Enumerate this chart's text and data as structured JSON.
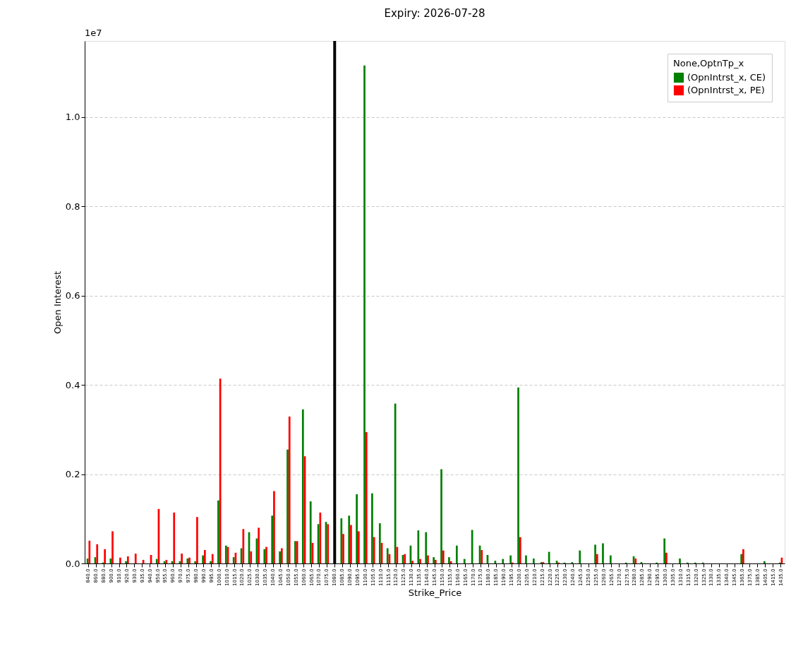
{
  "chart_data": {
    "type": "bar",
    "title": "Expiry: 2026-07-28",
    "xlabel": "Strike_Price",
    "ylabel": "Open Interest",
    "legend_title": "None,OptnTp_x",
    "categories": [
      "840.0",
      "860.0",
      "880.0",
      "900.0",
      "910.0",
      "920.0",
      "930.0",
      "935.0",
      "940.0",
      "950.0",
      "955.0",
      "960.0",
      "970.0",
      "975.0",
      "980.0",
      "990.0",
      "995.0",
      "1000.0",
      "1010.0",
      "1015.0",
      "1020.0",
      "1025.0",
      "1030.0",
      "1035.0",
      "1040.0",
      "1045.0",
      "1050.0",
      "1055.0",
      "1060.0",
      "1065.0",
      "1070.0",
      "1075.0",
      "1080.0",
      "1085.0",
      "1090.0",
      "1095.0",
      "1100.0",
      "1105.0",
      "1110.0",
      "1115.0",
      "1120.0",
      "1125.0",
      "1130.0",
      "1135.0",
      "1140.0",
      "1145.0",
      "1150.0",
      "1155.0",
      "1160.0",
      "1165.0",
      "1170.0",
      "1175.0",
      "1180.0",
      "1185.0",
      "1190.0",
      "1195.0",
      "1200.0",
      "1205.0",
      "1210.0",
      "1215.0",
      "1220.0",
      "1225.0",
      "1230.0",
      "1240.0",
      "1245.0",
      "1250.0",
      "1255.0",
      "1260.0",
      "1265.0",
      "1270.0",
      "1275.0",
      "1280.0",
      "1285.0",
      "1290.0",
      "1295.0",
      "1300.0",
      "1305.0",
      "1310.0",
      "1315.0",
      "1320.0",
      "1325.0",
      "1330.0",
      "1335.0",
      "1340.0",
      "1345.0",
      "1365.0",
      "1375.0",
      "1385.0",
      "1405.0",
      "1415.0",
      "1435.0"
    ],
    "series": [
      {
        "name": "(OpnIntrst_x, CE)",
        "color": "#008000",
        "values": [
          0.011,
          0.014,
          0.002,
          0.011,
          null,
          0.005,
          null,
          null,
          null,
          0.01,
          0.005,
          0.005,
          0.005,
          0.011,
          0.005,
          0.018,
          0.005,
          0.141,
          0.04,
          0.014,
          0.034,
          0.07,
          0.056,
          0.032,
          0.107,
          0.027,
          0.255,
          0.05,
          0.345,
          0.139,
          0.088,
          0.093,
          null,
          0.101,
          0.107,
          0.155,
          1.115,
          0.157,
          0.09,
          0.034,
          0.358,
          0.019,
          0.04,
          0.074,
          0.07,
          0.014,
          0.211,
          0.014,
          0.04,
          0.01,
          0.075,
          0.04,
          0.019,
          0.006,
          0.01,
          0.018,
          0.394,
          0.018,
          0.011,
          0.003,
          0.026,
          0.006,
          0.002,
          0.003,
          0.029,
          null,
          0.042,
          0.045,
          0.018,
          null,
          0.002,
          0.016,
          0.003,
          null,
          0.002,
          0.056,
          null,
          0.011,
          0.002,
          0.002,
          0.002,
          null,
          null,
          null,
          null,
          0.021,
          null,
          null,
          0.005,
          null,
          0.002
        ]
      },
      {
        "name": "(OpnIntrst_x, PE)",
        "color": "#ff0000",
        "values": [
          0.051,
          0.043,
          0.032,
          0.072,
          0.013,
          0.016,
          0.022,
          0.008,
          0.019,
          0.122,
          0.008,
          0.114,
          0.022,
          0.013,
          0.104,
          0.03,
          0.021,
          0.414,
          0.037,
          0.024,
          0.077,
          0.027,
          0.08,
          0.037,
          0.162,
          0.034,
          0.329,
          0.05,
          0.24,
          0.046,
          0.114,
          0.088,
          null,
          0.066,
          0.086,
          0.072,
          0.294,
          0.059,
          0.046,
          0.021,
          0.037,
          0.021,
          0.006,
          0.01,
          0.018,
          0.008,
          0.029,
          0.005,
          null,
          null,
          null,
          0.03,
          null,
          null,
          null,
          0.002,
          0.059,
          null,
          null,
          0.003,
          null,
          0.002,
          null,
          null,
          null,
          null,
          0.021,
          null,
          null,
          null,
          null,
          0.011,
          null,
          null,
          null,
          0.024,
          null,
          null,
          null,
          null,
          null,
          null,
          null,
          null,
          null,
          0.032,
          null,
          null,
          null,
          null,
          0.013
        ]
      }
    ],
    "ylim": [
      0,
      1.17
    ],
    "yticks": [
      {
        "value": 0,
        "label": "0.0"
      },
      {
        "value": 0.2,
        "label": "0.2"
      },
      {
        "value": 0.4,
        "label": "0.4"
      },
      {
        "value": 0.6,
        "label": "0.6"
      },
      {
        "value": 0.8,
        "label": "0.8"
      },
      {
        "value": 1,
        "label": "1.0"
      }
    ],
    "annotations": [
      "1e7"
    ],
    "ref_lines": [
      {
        "axis": "x",
        "value": "1080.0",
        "label": null,
        "color": "#000000"
      }
    ],
    "grid": "y",
    "legend": "top right"
  }
}
